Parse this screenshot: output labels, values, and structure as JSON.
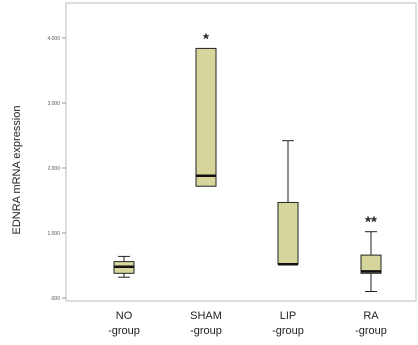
{
  "chart_data": {
    "type": "boxplot",
    "ylabel": "EDNRA mRNA expression",
    "ylim": [
      0,
      4.2
    ],
    "yticks": [
      {
        "value": 0,
        "label": ".000"
      },
      {
        "value": 1,
        "label": "1.000"
      },
      {
        "value": 2,
        "label": "2.000"
      },
      {
        "value": 3,
        "label": "3.000"
      },
      {
        "value": 4,
        "label": "4.000"
      }
    ],
    "categories": [
      {
        "line1": "NO",
        "line2": "-group"
      },
      {
        "line1": "SHAM",
        "line2": "-group"
      },
      {
        "line1": "LIP",
        "line2": "-group"
      },
      {
        "line1": "RA",
        "line2": "-group"
      }
    ],
    "boxes": [
      {
        "min": 0.32,
        "q1": 0.38,
        "median": 0.48,
        "q3": 0.56,
        "max": 0.64,
        "annotation": ""
      },
      {
        "min": 1.72,
        "q1": 1.72,
        "median": 1.88,
        "q3": 3.84,
        "max": 3.84,
        "annotation": "*"
      },
      {
        "min": 0.52,
        "q1": 0.52,
        "median": 0.52,
        "q3": 1.47,
        "max": 2.42,
        "annotation": ""
      },
      {
        "min": 0.1,
        "q1": 0.38,
        "median": 0.41,
        "q3": 0.66,
        "max": 1.02,
        "annotation": "**"
      }
    ],
    "box_color": "#d6d69c",
    "grid": false
  }
}
